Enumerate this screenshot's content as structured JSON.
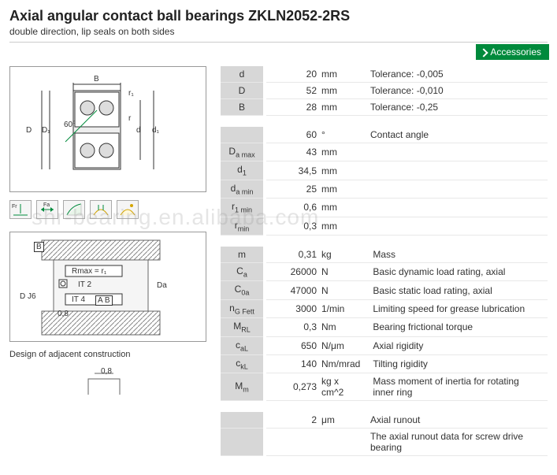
{
  "header": {
    "title": "Axial angular contact ball bearings ZKLN2052-2RS",
    "subtitle": "double direction, lip seals on both sides",
    "accessories_label": "Accessories"
  },
  "watermark": "shr-bearing.en.alibaba.com",
  "diagram1_labels": {
    "B": "B",
    "r1": "r₁",
    "r": "r",
    "d": "d",
    "d1": "d₁",
    "D": "D",
    "D1": "D₁",
    "angle": "60°"
  },
  "diagram2_labels": {
    "B_box": "B",
    "Rmax": "Rmax = r₁",
    "IT2": "IT 2",
    "IT4": "IT 4",
    "AB": "A  B",
    "DJ6": "D J6",
    "Da": "Da",
    "v08a": "0,8",
    "v08b": "0,8"
  },
  "caption2": "Design of adjacent construction",
  "specs_group1": [
    {
      "sym": "d",
      "val": "20",
      "unit": "mm",
      "desc": "Tolerance: -0,005"
    },
    {
      "sym": "D",
      "val": "52",
      "unit": "mm",
      "desc": "Tolerance: -0,010"
    },
    {
      "sym": "B",
      "val": "28",
      "unit": "mm",
      "desc": "Tolerance: -0,25"
    }
  ],
  "specs_group2": [
    {
      "sym": "",
      "val": "60",
      "unit": "°",
      "desc": "Contact angle"
    },
    {
      "sym": "D<span class='sub'>a max</span>",
      "val": "43",
      "unit": "mm",
      "desc": ""
    },
    {
      "sym": "d<span class='sub'>1</span>",
      "val": "34,5",
      "unit": "mm",
      "desc": ""
    },
    {
      "sym": "d<span class='sub'>a min</span>",
      "val": "25",
      "unit": "mm",
      "desc": ""
    },
    {
      "sym": "r<span class='sub'>1 min</span>",
      "val": "0,6",
      "unit": "mm",
      "desc": ""
    },
    {
      "sym": "r<span class='sub'>min</span>",
      "val": "0,3",
      "unit": "mm",
      "desc": ""
    }
  ],
  "specs_group3": [
    {
      "sym": "m",
      "val": "0,31",
      "unit": "kg",
      "desc": "Mass"
    },
    {
      "sym": "C<span class='sub'>a</span>",
      "val": "26000",
      "unit": "N",
      "desc": "Basic dynamic load rating, axial"
    },
    {
      "sym": "C<span class='sub'>0a</span>",
      "val": "47000",
      "unit": "N",
      "desc": "Basic static load rating, axial"
    },
    {
      "sym": "n<span class='sub'>G Fett</span>",
      "val": "3000",
      "unit": "1/min",
      "desc": "Limiting speed for grease lubrication"
    },
    {
      "sym": "M<span class='sub'>RL</span>",
      "val": "0,3",
      "unit": "Nm",
      "desc": "Bearing frictional torque"
    },
    {
      "sym": "c<span class='sub'>aL</span>",
      "val": "650",
      "unit": "N/μm",
      "desc": "Axial rigidity"
    },
    {
      "sym": "c<span class='sub'>kL</span>",
      "val": "140",
      "unit": "Nm/mrad",
      "desc": "Tilting rigidity"
    },
    {
      "sym": "M<span class='sub'>m</span>",
      "val": "0,273",
      "unit": "kg x cm^2",
      "desc": "Mass moment of inertia for rotating inner ring"
    }
  ],
  "specs_group4": [
    {
      "sym": "",
      "val": "2",
      "unit": "μm",
      "desc": "Axial runout"
    },
    {
      "sym": "",
      "val": "",
      "unit": "",
      "desc": "The axial runout data for screw drive bearing"
    }
  ],
  "colors": {
    "accent_green": "#008a3c",
    "row_gray": "#d7d7d7",
    "border": "#e8e8e8",
    "text": "#333333"
  }
}
